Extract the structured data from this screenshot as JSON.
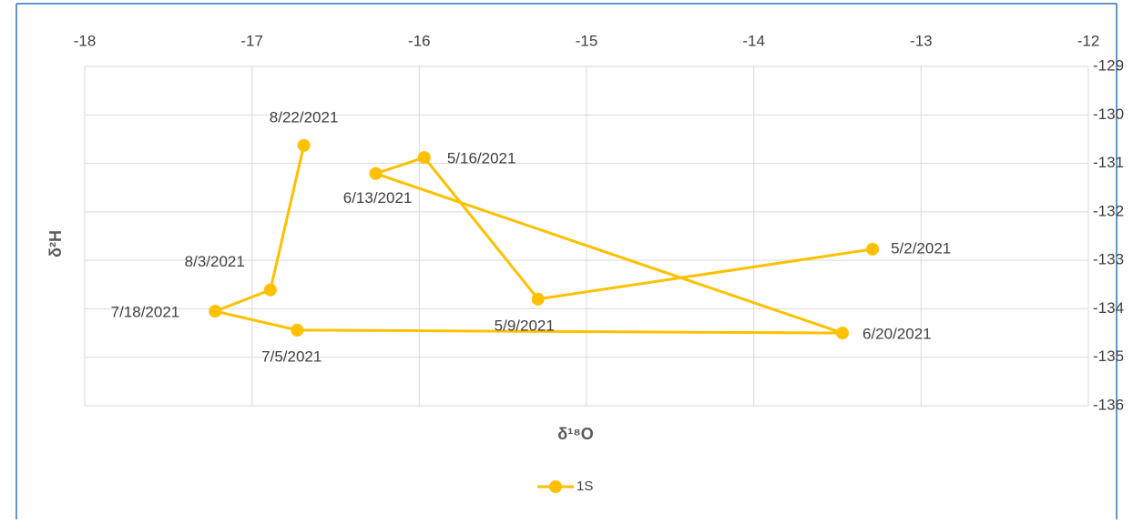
{
  "chart_data": {
    "type": "line",
    "xlabel": "δ¹⁸O",
    "ylabel": "δ²H",
    "x": [
      -13.29,
      -15.29,
      -15.97,
      -16.26,
      -13.47,
      -16.73,
      -17.22,
      -16.89,
      -16.69
    ],
    "point_labels": [
      "5/2/2021",
      "5/9/2021",
      "5/16/2021",
      "6/13/2021",
      "6/20/2021",
      "7/5/2021",
      "7/18/2021",
      "8/3/2021",
      "8/22/2021"
    ],
    "series": [
      {
        "name": "1S",
        "color": "#ffc000",
        "values": [
          -132.77,
          -133.8,
          -130.88,
          -131.21,
          -134.5,
          -134.44,
          -134.05,
          -133.61,
          -130.63
        ]
      }
    ],
    "xlim": [
      -18,
      -12
    ],
    "xticks": [
      -18,
      -17,
      -16,
      -15,
      -14,
      -13,
      -12
    ],
    "ylim": [
      -136,
      -129
    ],
    "yticks": [
      -129,
      -130,
      -131,
      -132,
      -133,
      -134,
      -135,
      -136
    ],
    "grid": true,
    "legend": "bottom"
  }
}
